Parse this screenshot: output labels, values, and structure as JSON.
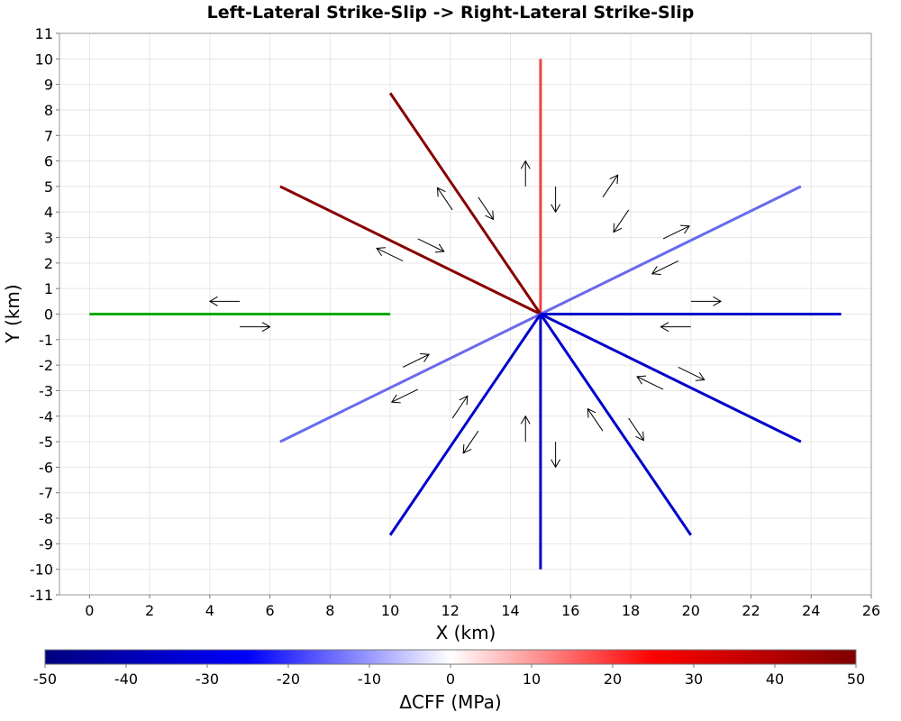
{
  "chart_data": {
    "type": "line",
    "title": "Left-Lateral Strike-Slip -> Right-Lateral Strike-Slip",
    "xlabel": "X (km)",
    "ylabel": "Y (km)",
    "xlim": [
      -1,
      26
    ],
    "ylim": [
      -11,
      11
    ],
    "xticks": [
      0,
      2,
      4,
      6,
      8,
      10,
      12,
      14,
      16,
      18,
      20,
      22,
      24,
      26
    ],
    "yticks": [
      -11,
      -10,
      -9,
      -8,
      -7,
      -6,
      -5,
      -4,
      -3,
      -2,
      -1,
      0,
      1,
      2,
      3,
      4,
      5,
      6,
      7,
      8,
      9,
      10,
      11
    ],
    "grid": true,
    "center": [
      15,
      0
    ],
    "faults": [
      {
        "x": [
          0,
          10
        ],
        "y": [
          0,
          0
        ],
        "color": "#00aa00"
      },
      {
        "x": [
          15,
          15
        ],
        "y": [
          0,
          10
        ],
        "color": "#ee4444"
      },
      {
        "x": [
          15,
          10
        ],
        "y": [
          0,
          8.66
        ],
        "color": "#880000"
      },
      {
        "x": [
          15,
          6.34
        ],
        "y": [
          0,
          5
        ],
        "color": "#880000"
      },
      {
        "x": [
          15,
          23.66
        ],
        "y": [
          0,
          5
        ],
        "color": "#6a6aee"
      },
      {
        "x": [
          15,
          6.34
        ],
        "y": [
          0,
          -5
        ],
        "color": "#6a6aee"
      },
      {
        "x": [
          15,
          25
        ],
        "y": [
          0,
          0
        ],
        "color": "#0000cc"
      },
      {
        "x": [
          15,
          23.66
        ],
        "y": [
          0,
          -5
        ],
        "color": "#0000cc"
      },
      {
        "x": [
          15,
          20
        ],
        "y": [
          0,
          -8.66
        ],
        "color": "#0000cc"
      },
      {
        "x": [
          15,
          15
        ],
        "y": [
          0,
          -10
        ],
        "color": "#0000cc"
      },
      {
        "x": [
          15,
          10
        ],
        "y": [
          0,
          -8.66
        ],
        "color": "#0000cc"
      }
    ],
    "slip_arrows": [
      {
        "x1": 5,
        "y1": 0.5,
        "x2": 4,
        "y2": 0.5
      },
      {
        "x1": 5,
        "y1": -0.5,
        "x2": 6,
        "y2": -0.5
      },
      {
        "x1": 14.5,
        "y1": 5,
        "x2": 14.5,
        "y2": 6
      },
      {
        "x1": 15.5,
        "y1": 5,
        "x2": 15.5,
        "y2": 4
      },
      {
        "x1": 12.07,
        "y1": 4.08,
        "x2": 11.57,
        "y2": 4.95
      },
      {
        "x1": 12.93,
        "y1": 4.58,
        "x2": 13.43,
        "y2": 3.71
      },
      {
        "x1": 10.42,
        "y1": 2.08,
        "x2": 9.55,
        "y2": 2.58
      },
      {
        "x1": 10.92,
        "y1": 2.95,
        "x2": 11.79,
        "y2": 2.45
      },
      {
        "x1": 17.07,
        "y1": 4.58,
        "x2": 17.57,
        "y2": 5.45
      },
      {
        "x1": 17.93,
        "y1": 4.08,
        "x2": 17.43,
        "y2": 3.21
      },
      {
        "x1": 19.08,
        "y1": 2.95,
        "x2": 19.95,
        "y2": 3.45
      },
      {
        "x1": 19.58,
        "y1": 2.08,
        "x2": 18.71,
        "y2": 1.58
      },
      {
        "x1": 20,
        "y1": 0.5,
        "x2": 21,
        "y2": 0.5
      },
      {
        "x1": 20,
        "y1": -0.5,
        "x2": 19,
        "y2": -0.5
      },
      {
        "x1": 10.42,
        "y1": -2.08,
        "x2": 11.29,
        "y2": -1.58
      },
      {
        "x1": 10.92,
        "y1": -2.95,
        "x2": 10.05,
        "y2": -3.45
      },
      {
        "x1": 12.07,
        "y1": -4.08,
        "x2": 12.57,
        "y2": -3.21
      },
      {
        "x1": 12.93,
        "y1": -4.58,
        "x2": 12.43,
        "y2": -5.45
      },
      {
        "x1": 14.5,
        "y1": -5,
        "x2": 14.5,
        "y2": -4
      },
      {
        "x1": 15.5,
        "y1": -5,
        "x2": 15.5,
        "y2": -6
      },
      {
        "x1": 17.07,
        "y1": -4.58,
        "x2": 16.57,
        "y2": -3.71
      },
      {
        "x1": 17.93,
        "y1": -4.08,
        "x2": 18.43,
        "y2": -4.95
      },
      {
        "x1": 19.08,
        "y1": -2.95,
        "x2": 18.21,
        "y2": -2.45
      },
      {
        "x1": 19.58,
        "y1": -2.08,
        "x2": 20.45,
        "y2": -2.58
      }
    ],
    "colorbar": {
      "label": "ΔCFF (MPa)",
      "min": -50,
      "max": 50,
      "ticks": [
        -50,
        -40,
        -30,
        -20,
        -10,
        0,
        10,
        20,
        30,
        40,
        50
      ],
      "colors": [
        "#000080",
        "#0000ff",
        "#ffffff",
        "#ff0000",
        "#800000"
      ]
    }
  }
}
